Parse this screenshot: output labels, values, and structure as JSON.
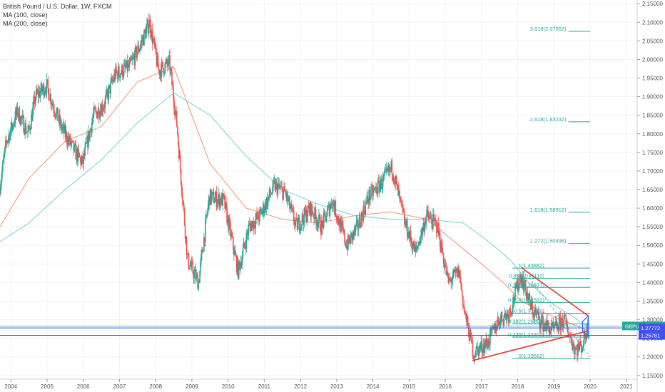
{
  "legend": {
    "symbol_line": "British Pound / U.S. Dollar, 1W, FXCM",
    "ma100": "MA (100, close)",
    "ma200": "MA (200, close)"
  },
  "price_tag": {
    "symbol": "GBPUSD",
    "value": "1.28311"
  },
  "colors": {
    "up": "#26a69a",
    "down": "#ef5350",
    "ma100": "#f39c7b",
    "ma200": "#7fd4d4",
    "fib": "#26a69a",
    "trend": "#e53935",
    "hline": "#3f51f5",
    "arrow": "#2962ff"
  },
  "chart_data": {
    "type": "candlestick",
    "y_axis": {
      "range": [
        1.14,
        2.16
      ],
      "ticks": [
        "2.15000",
        "2.10000",
        "2.05000",
        "2.00000",
        "1.95000",
        "1.90000",
        "1.85000",
        "1.80000",
        "1.75000",
        "1.70000",
        "1.65000",
        "1.60000",
        "1.55000",
        "1.50000",
        "1.45000",
        "1.40000",
        "1.35000",
        "1.30000",
        "1.25000",
        "1.20000",
        "1.15000"
      ]
    },
    "x_axis": {
      "ticks": [
        "2004",
        "2005",
        "2006",
        "2007",
        "2008",
        "2009",
        "2010",
        "2011",
        "2012",
        "2013",
        "2014",
        "2015",
        "2016",
        "2017",
        "2018",
        "2019",
        "2020",
        "2021"
      ]
    },
    "price_anchors": [
      [
        2003.7,
        1.65
      ],
      [
        2003.9,
        1.78
      ],
      [
        2004.2,
        1.86
      ],
      [
        2004.5,
        1.8
      ],
      [
        2004.7,
        1.9
      ],
      [
        2005.0,
        1.93
      ],
      [
        2005.4,
        1.82
      ],
      [
        2005.8,
        1.75
      ],
      [
        2006.0,
        1.72
      ],
      [
        2006.3,
        1.85
      ],
      [
        2006.6,
        1.88
      ],
      [
        2006.9,
        1.96
      ],
      [
        2007.3,
        1.98
      ],
      [
        2007.6,
        2.04
      ],
      [
        2007.85,
        2.1
      ],
      [
        2008.1,
        1.97
      ],
      [
        2008.4,
        1.99
      ],
      [
        2008.6,
        1.83
      ],
      [
        2008.9,
        1.46
      ],
      [
        2009.2,
        1.4
      ],
      [
        2009.5,
        1.63
      ],
      [
        2009.9,
        1.62
      ],
      [
        2010.3,
        1.43
      ],
      [
        2010.6,
        1.55
      ],
      [
        2010.9,
        1.58
      ],
      [
        2011.3,
        1.66
      ],
      [
        2011.6,
        1.64
      ],
      [
        2011.9,
        1.55
      ],
      [
        2012.3,
        1.6
      ],
      [
        2012.6,
        1.55
      ],
      [
        2012.9,
        1.62
      ],
      [
        2013.3,
        1.5
      ],
      [
        2013.6,
        1.55
      ],
      [
        2013.9,
        1.63
      ],
      [
        2014.2,
        1.66
      ],
      [
        2014.55,
        1.71
      ],
      [
        2014.9,
        1.56
      ],
      [
        2015.2,
        1.48
      ],
      [
        2015.5,
        1.58
      ],
      [
        2015.8,
        1.55
      ],
      [
        2016.1,
        1.4
      ],
      [
        2016.4,
        1.43
      ],
      [
        2016.55,
        1.32
      ],
      [
        2016.8,
        1.21
      ],
      [
        2017.2,
        1.24
      ],
      [
        2017.5,
        1.3
      ],
      [
        2017.8,
        1.32
      ],
      [
        2018.1,
        1.42
      ],
      [
        2018.4,
        1.33
      ],
      [
        2018.7,
        1.29
      ],
      [
        2019.0,
        1.27
      ],
      [
        2019.3,
        1.3
      ],
      [
        2019.6,
        1.22
      ],
      [
        2019.8,
        1.23
      ],
      [
        2019.95,
        1.28
      ]
    ],
    "moving_averages": [
      {
        "name": "MA (100, close)",
        "points": [
          [
            2003.7,
            1.55
          ],
          [
            2004.5,
            1.68
          ],
          [
            2005.5,
            1.78
          ],
          [
            2006.5,
            1.82
          ],
          [
            2007.5,
            1.94
          ],
          [
            2008.5,
            1.98
          ],
          [
            2009.5,
            1.72
          ],
          [
            2010.5,
            1.6
          ],
          [
            2011.5,
            1.57
          ],
          [
            2012.5,
            1.56
          ],
          [
            2013.5,
            1.58
          ],
          [
            2014.5,
            1.59
          ],
          [
            2015.5,
            1.57
          ],
          [
            2016.5,
            1.49
          ],
          [
            2017.0,
            1.45
          ],
          [
            2017.6,
            1.4
          ],
          [
            2018.1,
            1.35
          ],
          [
            2018.7,
            1.32
          ],
          [
            2019.2,
            1.3
          ],
          [
            2019.95,
            1.27
          ]
        ]
      },
      {
        "name": "MA (200, close)",
        "points": [
          [
            2003.7,
            1.51
          ],
          [
            2004.5,
            1.56
          ],
          [
            2005.5,
            1.65
          ],
          [
            2006.5,
            1.73
          ],
          [
            2007.5,
            1.83
          ],
          [
            2008.5,
            1.91
          ],
          [
            2009.5,
            1.85
          ],
          [
            2010.5,
            1.74
          ],
          [
            2011.5,
            1.65
          ],
          [
            2012.5,
            1.61
          ],
          [
            2013.5,
            1.58
          ],
          [
            2014.5,
            1.57
          ],
          [
            2015.5,
            1.57
          ],
          [
            2016.5,
            1.56
          ],
          [
            2017.2,
            1.51
          ],
          [
            2017.8,
            1.46
          ],
          [
            2018.3,
            1.4
          ],
          [
            2019.0,
            1.34
          ],
          [
            2019.5,
            1.31
          ],
          [
            2019.95,
            1.28
          ]
        ]
      }
    ],
    "fib_levels": [
      {
        "label": "3.618(2.07552)",
        "value": 2.07552,
        "x": [
          2019.4,
          2020.0
        ]
      },
      {
        "label": "2.618(1.83232)",
        "value": 1.83232,
        "x": [
          2019.4,
          2020.0
        ]
      },
      {
        "label": "1.618(1.58912)",
        "value": 1.58912,
        "x": [
          2019.4,
          2020.0
        ]
      },
      {
        "label": "1.272(1.50498)",
        "value": 1.50498,
        "x": [
          2019.4,
          2020.0
        ]
      },
      {
        "label": "1(1.43882)",
        "value": 1.43882,
        "x": [
          2017.85,
          2020.0
        ]
      },
      {
        "label": "0.886(1.41110)",
        "value": 1.4111,
        "x": [
          2017.85,
          2020.0
        ]
      },
      {
        "label": "0.786(1.38677)",
        "value": 1.38677,
        "x": [
          2017.85,
          2020.0
        ]
      },
      {
        "label": "0.618(1.34592)",
        "value": 1.34592,
        "x": [
          2017.85,
          2020.0
        ]
      },
      {
        "label": "0.5(1.31722)",
        "value": 1.31722,
        "x": [
          2017.85,
          2020.0
        ]
      },
      {
        "label": "0.382(1.28853)",
        "value": 1.28853,
        "x": [
          2017.85,
          2020.0
        ]
      },
      {
        "label": "0.236(1.25302)",
        "value": 1.25302,
        "x": [
          2017.85,
          2020.0
        ]
      },
      {
        "label": "0(1.19562)",
        "value": 1.19562,
        "x": [
          2017.85,
          2020.0
        ]
      }
    ],
    "horizontal_lines": [
      {
        "value": 1.28311
      },
      {
        "value": 1.27772,
        "label": "1.27772"
      },
      {
        "value": 1.25781,
        "label": "1.25781"
      }
    ],
    "trendlines": [
      {
        "from": [
          2016.75,
          1.19
        ],
        "to": [
          2019.95,
          1.27
        ]
      },
      {
        "from": [
          2018.1,
          1.44
        ],
        "to": [
          2019.95,
          1.31
        ]
      }
    ]
  }
}
